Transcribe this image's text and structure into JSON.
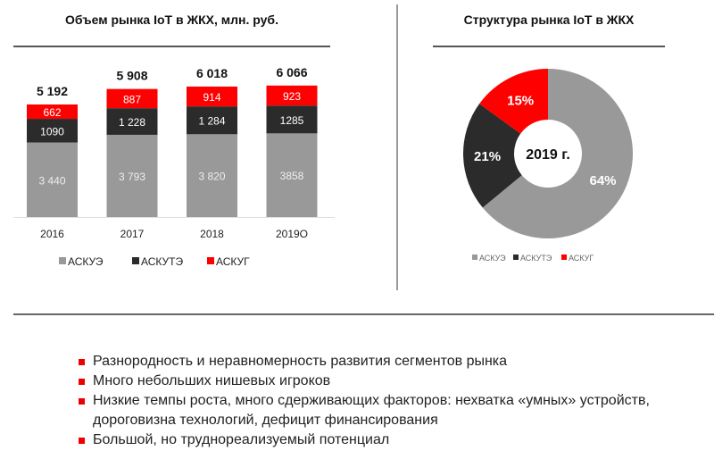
{
  "chart_data": [
    {
      "type": "bar",
      "stacked": true,
      "title": "Объем рынка IoT в ЖКХ, млн. руб.",
      "categories": [
        "2016",
        "2017",
        "2018",
        "2019О"
      ],
      "series": [
        {
          "name": "АСКУЭ",
          "color": "#999999",
          "values": [
            3440,
            3793,
            3820,
            3858
          ],
          "labels": [
            "3 440",
            "3 793",
            "3 820",
            "3858"
          ]
        },
        {
          "name": "АСКУТЭ",
          "color": "#2b2b2b",
          "values": [
            1090,
            1228,
            1284,
            1285
          ],
          "labels": [
            "1090",
            "1 228",
            "1 284",
            "1285"
          ]
        },
        {
          "name": "АСКУГ",
          "color": "#ff0000",
          "values": [
            662,
            887,
            914,
            923
          ],
          "labels": [
            "662",
            "887",
            "914",
            "923"
          ]
        }
      ],
      "totals": [
        "5 192",
        "5 908",
        "6 018",
        "6 066"
      ],
      "legend": "bottom"
    },
    {
      "type": "pie",
      "donut": true,
      "title": "Структура рынка IoT в ЖКХ",
      "center_label": "2019 г.",
      "slices": [
        {
          "name": "АСКУЭ",
          "value": 64,
          "label": "64%",
          "color": "#999999"
        },
        {
          "name": "АСКУТЭ",
          "value": 21,
          "label": "21%",
          "color": "#2b2b2b"
        },
        {
          "name": "АСКУГ",
          "value": 15,
          "label": "15%",
          "color": "#ff0000"
        }
      ],
      "legend": "bottom"
    }
  ],
  "bullets": [
    "Разнородность и неравномерность развития сегментов рынка",
    "Много небольших нишевых игроков",
    "Низкие темпы роста, много сдерживающих факторов: нехватка «умных» устройств, дороговизна технологий, дефицит финансирования",
    "Большой, но труднореализуемый потенциал"
  ]
}
